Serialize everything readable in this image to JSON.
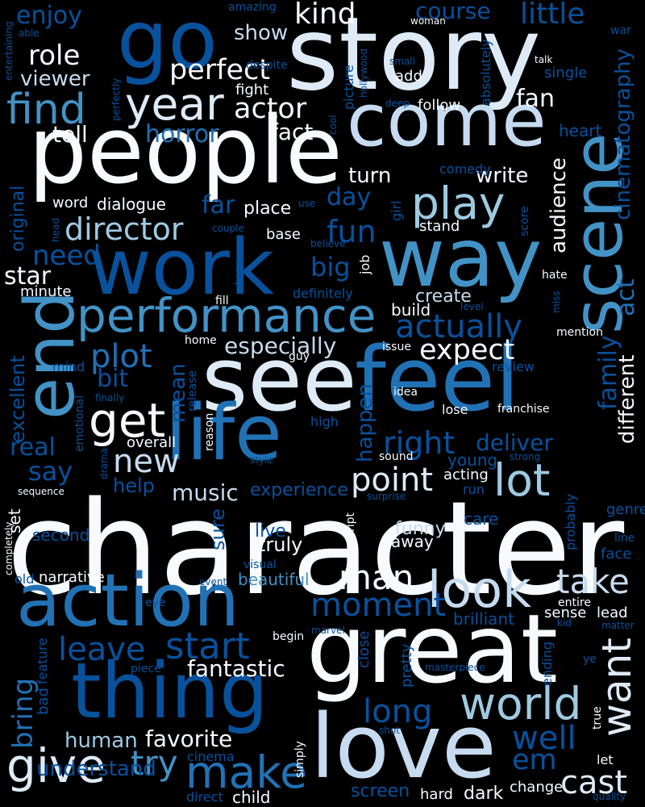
{
  "palette": {
    "white": "#f7fbff",
    "ice": "#deebf7",
    "pale": "#c6dbef",
    "light": "#9ecae1",
    "sky": "#6baed6",
    "mid": "#4292c6",
    "blue": "#2171b5",
    "deep": "#08519c",
    "navy": "#08306b"
  },
  "words": [
    {
      "text": "character",
      "color": "white"
    },
    {
      "text": "story",
      "color": "ice"
    },
    {
      "text": "great",
      "color": "white"
    },
    {
      "text": "feel",
      "color": "blue"
    },
    {
      "text": "see",
      "color": "ice"
    },
    {
      "text": "people",
      "color": "white"
    },
    {
      "text": "love",
      "color": "pale"
    },
    {
      "text": "way",
      "color": "mid"
    },
    {
      "text": "work",
      "color": "deep"
    },
    {
      "text": "life",
      "color": "blue"
    },
    {
      "text": "action",
      "color": "blue"
    },
    {
      "text": "thing",
      "color": "deep"
    },
    {
      "text": "come",
      "color": "pale"
    },
    {
      "text": "go",
      "color": "deep"
    },
    {
      "text": "end",
      "color": "mid"
    },
    {
      "text": "scene",
      "color": "mid"
    },
    {
      "text": "performance",
      "color": "mid"
    },
    {
      "text": "look",
      "color": "pale"
    },
    {
      "text": "give",
      "color": "ice"
    },
    {
      "text": "make",
      "color": "blue"
    },
    {
      "text": "world",
      "color": "light"
    },
    {
      "text": "get",
      "color": "white"
    },
    {
      "text": "year",
      "color": "ice"
    },
    {
      "text": "find",
      "color": "mid"
    },
    {
      "text": "play",
      "color": "light"
    },
    {
      "text": "lot",
      "color": "light"
    },
    {
      "text": "want",
      "color": "ice"
    },
    {
      "text": "man",
      "color": "white"
    },
    {
      "text": "take",
      "color": "pale"
    },
    {
      "text": "start",
      "color": "deep"
    },
    {
      "text": "moment",
      "color": "deep"
    },
    {
      "text": "plot",
      "color": "blue"
    },
    {
      "text": "director",
      "color": "light"
    },
    {
      "text": "actually",
      "color": "deep"
    },
    {
      "text": "point",
      "color": "ice"
    },
    {
      "text": "new",
      "color": "pale"
    },
    {
      "text": "expect",
      "color": "white"
    },
    {
      "text": "leave",
      "color": "deep"
    },
    {
      "text": "long",
      "color": "deep"
    },
    {
      "text": "try",
      "color": "mid"
    },
    {
      "text": "cast",
      "color": "ice"
    },
    {
      "text": "perfect",
      "color": "white"
    },
    {
      "text": "actor",
      "color": "white"
    },
    {
      "text": "fun",
      "color": "deep"
    },
    {
      "text": "bring",
      "color": "blue"
    },
    {
      "text": "fantastic",
      "color": "white"
    },
    {
      "text": "favorite",
      "color": "white"
    },
    {
      "text": "especially",
      "color": "pale"
    },
    {
      "text": "family",
      "color": "deep"
    },
    {
      "text": "enjoy",
      "color": "deep"
    },
    {
      "text": "little",
      "color": "deep"
    },
    {
      "text": "kind",
      "color": "white"
    },
    {
      "text": "course",
      "color": "deep"
    },
    {
      "text": "role",
      "color": "white"
    },
    {
      "text": "horror",
      "color": "blue"
    },
    {
      "text": "right",
      "color": "deep"
    },
    {
      "text": "deliver",
      "color": "deep"
    },
    {
      "text": "audience",
      "color": "white"
    },
    {
      "text": "cinematography",
      "color": "deep"
    },
    {
      "text": "act",
      "color": "blue"
    },
    {
      "text": "different",
      "color": "white"
    },
    {
      "text": "music",
      "color": "pale"
    },
    {
      "text": "say",
      "color": "deep"
    },
    {
      "text": "real",
      "color": "deep"
    },
    {
      "text": "big",
      "color": "deep"
    },
    {
      "text": "need",
      "color": "deep"
    },
    {
      "text": "day",
      "color": "deep"
    },
    {
      "text": "turn",
      "color": "white"
    },
    {
      "text": "write",
      "color": "white"
    },
    {
      "text": "bit",
      "color": "deep"
    },
    {
      "text": "fan",
      "color": "white"
    },
    {
      "text": "fact",
      "color": "white"
    },
    {
      "text": "tell",
      "color": "white"
    },
    {
      "text": "star",
      "color": "white"
    },
    {
      "text": "show",
      "color": "pale"
    },
    {
      "text": "viewer",
      "color": "pale"
    },
    {
      "text": "far",
      "color": "deep"
    },
    {
      "text": "human",
      "color": "light"
    },
    {
      "text": "understand",
      "color": "deep"
    },
    {
      "text": "well",
      "color": "deep"
    },
    {
      "text": "em",
      "color": "deep"
    },
    {
      "text": "happen",
      "color": "deep"
    },
    {
      "text": "experience",
      "color": "deep"
    },
    {
      "text": "help",
      "color": "deep"
    },
    {
      "text": "sure",
      "color": "deep"
    },
    {
      "text": "mean",
      "color": "deep"
    },
    {
      "text": "excellent",
      "color": "deep"
    },
    {
      "text": "original",
      "color": "deep"
    },
    {
      "text": "dialogue",
      "color": "white"
    },
    {
      "text": "place",
      "color": "white"
    },
    {
      "text": "create",
      "color": "pale"
    },
    {
      "text": "build",
      "color": "white"
    },
    {
      "text": "beautiful",
      "color": "mid"
    },
    {
      "text": "brilliant",
      "color": "deep"
    },
    {
      "text": "funny",
      "color": "pale"
    },
    {
      "text": "live",
      "color": "deep"
    },
    {
      "text": "truly",
      "color": "white"
    },
    {
      "text": "away",
      "color": "white"
    },
    {
      "text": "second",
      "color": "deep"
    },
    {
      "text": "narrative",
      "color": "white"
    },
    {
      "text": "genre",
      "color": "deep"
    },
    {
      "text": "care",
      "color": "deep"
    },
    {
      "text": "acting",
      "color": "white"
    },
    {
      "text": "young",
      "color": "deep"
    },
    {
      "text": "dark",
      "color": "white"
    },
    {
      "text": "child",
      "color": "white"
    },
    {
      "text": "screen",
      "color": "deep"
    },
    {
      "text": "hard",
      "color": "white"
    },
    {
      "text": "change",
      "color": "white"
    },
    {
      "text": "lead",
      "color": "white"
    },
    {
      "text": "sense",
      "color": "white"
    },
    {
      "text": "minute",
      "color": "white"
    },
    {
      "text": "word",
      "color": "white"
    },
    {
      "text": "base",
      "color": "white"
    },
    {
      "text": "stand",
      "color": "white"
    },
    {
      "text": "comedy",
      "color": "deep"
    },
    {
      "text": "follow",
      "color": "white"
    },
    {
      "text": "heart",
      "color": "deep"
    },
    {
      "text": "add",
      "color": "white"
    },
    {
      "text": "single",
      "color": "deep"
    },
    {
      "text": "fight",
      "color": "white"
    },
    {
      "text": "overall",
      "color": "white"
    },
    {
      "text": "set",
      "color": "white"
    },
    {
      "text": "mind",
      "color": "deep"
    },
    {
      "text": "job",
      "color": "white"
    },
    {
      "text": "review",
      "color": "deep"
    },
    {
      "text": "definitely",
      "color": "deep"
    },
    {
      "text": "sound",
      "color": "white"
    },
    {
      "text": "lose",
      "color": "white"
    },
    {
      "text": "franchise",
      "color": "white"
    },
    {
      "text": "idea",
      "color": "white"
    },
    {
      "text": "picture",
      "color": "deep"
    },
    {
      "text": "absolutely",
      "color": "deep"
    },
    {
      "text": "hollywood",
      "color": "deep"
    },
    {
      "text": "girl",
      "color": "deep"
    },
    {
      "text": "score",
      "color": "deep"
    },
    {
      "text": "hate",
      "color": "white"
    },
    {
      "text": "fill",
      "color": "white"
    },
    {
      "text": "home",
      "color": "white"
    },
    {
      "text": "issue",
      "color": "white"
    },
    {
      "text": "guy",
      "color": "white"
    },
    {
      "text": "mention",
      "color": "white"
    },
    {
      "text": "probably",
      "color": "deep"
    },
    {
      "text": "ending",
      "color": "deep"
    },
    {
      "text": "pretty",
      "color": "deep"
    },
    {
      "text": "close",
      "color": "deep"
    },
    {
      "text": "true",
      "color": "white"
    },
    {
      "text": "let",
      "color": "white"
    },
    {
      "text": "quality",
      "color": "deep"
    },
    {
      "text": "face",
      "color": "deep"
    },
    {
      "text": "line",
      "color": "deep"
    },
    {
      "text": "entire",
      "color": "white"
    },
    {
      "text": "kid",
      "color": "deep"
    },
    {
      "text": "matter",
      "color": "deep"
    },
    {
      "text": "eye",
      "color": "deep"
    },
    {
      "text": "event",
      "color": "deep"
    },
    {
      "text": "marvel",
      "color": "deep"
    },
    {
      "text": "visual",
      "color": "deep"
    },
    {
      "text": "script",
      "color": "white"
    },
    {
      "text": "feature",
      "color": "deep"
    },
    {
      "text": "bad",
      "color": "deep"
    },
    {
      "text": "piece",
      "color": "deep"
    },
    {
      "text": "begin",
      "color": "white"
    },
    {
      "text": "simply",
      "color": "white"
    },
    {
      "text": "cinema",
      "color": "deep"
    },
    {
      "text": "direct",
      "color": "deep"
    },
    {
      "text": "shot",
      "color": "deep"
    },
    {
      "text": "masterpiece",
      "color": "deep"
    },
    {
      "text": "old",
      "color": "deep"
    },
    {
      "text": "completely",
      "color": "white"
    },
    {
      "text": "sequence",
      "color": "white"
    },
    {
      "text": "drama",
      "color": "deep"
    },
    {
      "text": "emotional",
      "color": "deep"
    },
    {
      "text": "finally",
      "color": "deep"
    },
    {
      "text": "release",
      "color": "deep"
    },
    {
      "text": "reason",
      "color": "white"
    },
    {
      "text": "high",
      "color": "deep"
    },
    {
      "text": "style",
      "color": "deep"
    },
    {
      "text": "strong",
      "color": "deep"
    },
    {
      "text": "run",
      "color": "deep"
    },
    {
      "text": "surprise",
      "color": "deep"
    },
    {
      "text": "amazing",
      "color": "deep"
    },
    {
      "text": "despite",
      "color": "deep"
    },
    {
      "text": "woman",
      "color": "white"
    },
    {
      "text": "war",
      "color": "deep"
    },
    {
      "text": "talk",
      "color": "white"
    },
    {
      "text": "small",
      "color": "deep"
    },
    {
      "text": "deep",
      "color": "deep"
    },
    {
      "text": "cool",
      "color": "deep"
    },
    {
      "text": "entertaining",
      "color": "deep"
    },
    {
      "text": "able",
      "color": "deep"
    },
    {
      "text": "perfectly",
      "color": "deep"
    },
    {
      "text": "head",
      "color": "deep"
    },
    {
      "text": "use",
      "color": "deep"
    },
    {
      "text": "couple",
      "color": "deep"
    },
    {
      "text": "believe",
      "color": "deep"
    },
    {
      "text": "hope",
      "color": "deep"
    },
    {
      "text": "miss",
      "color": "deep"
    },
    {
      "text": "level",
      "color": "deep"
    },
    {
      "text": "ye",
      "color": "deep"
    }
  ]
}
